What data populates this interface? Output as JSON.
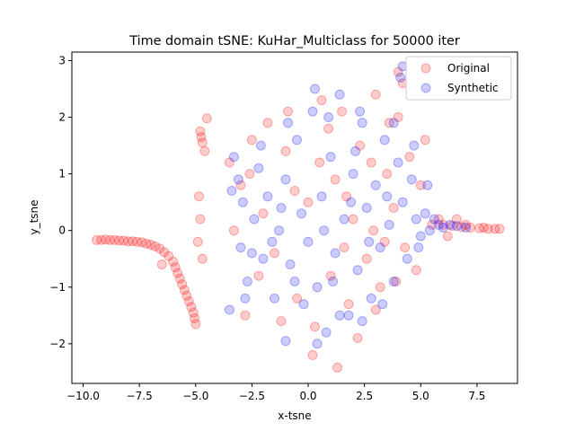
{
  "chart_data": {
    "type": "scatter",
    "title": "Time domain tSNE: KuHar_Multiclass for 50000 iter",
    "xlabel": "x-tsne",
    "ylabel": "y_tsne",
    "xlim": [
      -10.5,
      9.3
    ],
    "ylim": [
      -2.7,
      3.15
    ],
    "xticks": [
      -10.0,
      -7.5,
      -5.0,
      -2.5,
      0.0,
      2.5,
      5.0,
      7.5
    ],
    "xtick_labels": [
      "−10.0",
      "−7.5",
      "−5.0",
      "−2.5",
      "0.0",
      "2.5",
      "5.0",
      "7.5"
    ],
    "yticks": [
      -2,
      -1,
      0,
      1,
      2,
      3
    ],
    "ytick_labels": [
      "−2",
      "−1",
      "0",
      "1",
      "2",
      "3"
    ],
    "grid": false,
    "legend_position": "top-right",
    "series": [
      {
        "name": "Original",
        "color": "#ff0000",
        "alpha": 0.2,
        "points": [
          [
            -9.4,
            -0.17
          ],
          [
            -9.2,
            -0.17
          ],
          [
            -9.0,
            -0.16
          ],
          [
            -8.8,
            -0.17
          ],
          [
            -8.6,
            -0.17
          ],
          [
            -8.4,
            -0.18
          ],
          [
            -8.2,
            -0.18
          ],
          [
            -8.0,
            -0.19
          ],
          [
            -7.8,
            -0.19
          ],
          [
            -7.6,
            -0.2
          ],
          [
            -7.4,
            -0.21
          ],
          [
            -7.2,
            -0.23
          ],
          [
            -7.0,
            -0.25
          ],
          [
            -6.8,
            -0.28
          ],
          [
            -6.6,
            -0.32
          ],
          [
            -6.4,
            -0.38
          ],
          [
            -6.2,
            -0.45
          ],
          [
            -6.0,
            -0.55
          ],
          [
            -5.9,
            -0.65
          ],
          [
            -5.8,
            -0.75
          ],
          [
            -5.7,
            -0.85
          ],
          [
            -5.6,
            -0.95
          ],
          [
            -5.5,
            -1.05
          ],
          [
            -5.4,
            -1.15
          ],
          [
            -5.3,
            -1.25
          ],
          [
            -5.2,
            -1.35
          ],
          [
            -5.1,
            -1.45
          ],
          [
            -5.05,
            -1.55
          ],
          [
            -5.0,
            -1.65
          ],
          [
            -6.5,
            -0.6
          ],
          [
            -4.8,
            1.75
          ],
          [
            -4.75,
            1.65
          ],
          [
            -4.7,
            1.55
          ],
          [
            -4.6,
            1.4
          ],
          [
            -4.8,
            0.2
          ],
          [
            -4.9,
            -0.2
          ],
          [
            -4.7,
            -0.5
          ],
          [
            -4.85,
            0.6
          ],
          [
            -4.5,
            1.98
          ],
          [
            -3.5,
            1.2
          ],
          [
            -3.0,
            0.8
          ],
          [
            -2.5,
            1.6
          ],
          [
            -2.0,
            0.3
          ],
          [
            -1.5,
            -0.4
          ],
          [
            -1.0,
            1.4
          ],
          [
            -0.5,
            -1.2
          ],
          [
            0.0,
            0.5
          ],
          [
            0.3,
            -1.7
          ],
          [
            0.6,
            2.3
          ],
          [
            1.0,
            -0.8
          ],
          [
            1.2,
            0.9
          ],
          [
            1.5,
            2.1
          ],
          [
            1.8,
            -1.3
          ],
          [
            2.0,
            0.2
          ],
          [
            2.3,
            1.5
          ],
          [
            2.6,
            -0.5
          ],
          [
            3.0,
            2.4
          ],
          [
            3.2,
            -1.0
          ],
          [
            3.5,
            1.0
          ],
          [
            3.8,
            0.4
          ],
          [
            4.0,
            2.0
          ],
          [
            4.3,
            -0.3
          ],
          [
            4.5,
            1.3
          ],
          [
            4.8,
            -0.7
          ],
          [
            5.0,
            0.8
          ],
          [
            5.2,
            1.6
          ],
          [
            5.5,
            0.1
          ],
          [
            -2.8,
            -1.5
          ],
          [
            -1.2,
            -1.6
          ],
          [
            0.2,
            -2.2
          ],
          [
            1.3,
            -2.42
          ],
          [
            2.2,
            -1.9
          ],
          [
            3.0,
            -1.4
          ],
          [
            3.9,
            -0.9
          ],
          [
            4.2,
            2.6
          ],
          [
            4.0,
            2.8
          ],
          [
            3.6,
            1.9
          ],
          [
            2.8,
            1.2
          ],
          [
            -3.3,
            0.0
          ],
          [
            -2.2,
            -0.8
          ],
          [
            -0.6,
            0.7
          ],
          [
            0.9,
            1.8
          ],
          [
            1.7,
            0.6
          ],
          [
            2.9,
            0.0
          ],
          [
            3.4,
            -0.2
          ],
          [
            -0.9,
            2.1
          ],
          [
            -1.8,
            1.9
          ],
          [
            -2.6,
            1.0
          ],
          [
            0.5,
            1.2
          ],
          [
            1.6,
            -0.3
          ],
          [
            6.0,
            0.1
          ],
          [
            6.4,
            0.08
          ],
          [
            6.8,
            0.06
          ],
          [
            7.2,
            0.05
          ],
          [
            7.6,
            0.04
          ],
          [
            8.0,
            0.03
          ],
          [
            8.3,
            0.03
          ],
          [
            8.5,
            0.03
          ],
          [
            7.0,
            0.1
          ],
          [
            6.6,
            0.2
          ],
          [
            7.8,
            0.05
          ],
          [
            5.8,
            0.2
          ],
          [
            6.2,
            -0.1
          ]
        ]
      },
      {
        "name": "Synthetic",
        "color": "#0000ff",
        "alpha": 0.2,
        "points": [
          [
            -3.3,
            1.3
          ],
          [
            -3.1,
            0.9
          ],
          [
            -2.9,
            0.5
          ],
          [
            -3.0,
            -0.3
          ],
          [
            -2.7,
            -0.9
          ],
          [
            -2.4,
            0.2
          ],
          [
            -2.2,
            1.1
          ],
          [
            -2.0,
            -0.5
          ],
          [
            -1.8,
            0.6
          ],
          [
            -1.5,
            -1.2
          ],
          [
            -1.3,
            0.0
          ],
          [
            -1.0,
            0.9
          ],
          [
            -0.8,
            -0.6
          ],
          [
            -0.5,
            1.6
          ],
          [
            -0.3,
            0.3
          ],
          [
            0.0,
            -0.2
          ],
          [
            0.2,
            2.1
          ],
          [
            0.4,
            -1.0
          ],
          [
            0.6,
            0.6
          ],
          [
            0.8,
            -1.8
          ],
          [
            1.0,
            1.3
          ],
          [
            1.2,
            -0.4
          ],
          [
            1.4,
            2.4
          ],
          [
            1.6,
            0.2
          ],
          [
            1.8,
            -1.5
          ],
          [
            2.0,
            1.0
          ],
          [
            2.2,
            -0.7
          ],
          [
            2.4,
            1.9
          ],
          [
            2.6,
            0.4
          ],
          [
            2.8,
            -1.2
          ],
          [
            3.0,
            0.8
          ],
          [
            3.2,
            -0.3
          ],
          [
            3.4,
            1.6
          ],
          [
            3.6,
            0.1
          ],
          [
            3.8,
            -0.9
          ],
          [
            4.0,
            1.2
          ],
          [
            4.2,
            0.5
          ],
          [
            4.4,
            -0.5
          ],
          [
            4.6,
            0.9
          ],
          [
            4.8,
            0.2
          ],
          [
            5.0,
            -0.1
          ],
          [
            5.2,
            0.3
          ],
          [
            5.4,
            0.0
          ],
          [
            5.6,
            0.2
          ],
          [
            5.8,
            0.1
          ],
          [
            6.0,
            0.05
          ],
          [
            6.3,
            0.1
          ],
          [
            6.6,
            0.08
          ],
          [
            7.0,
            0.05
          ],
          [
            -3.5,
            -1.4
          ],
          [
            -2.8,
            -1.2
          ],
          [
            -1.0,
            -1.95
          ],
          [
            0.4,
            -2.0
          ],
          [
            1.4,
            -1.5
          ],
          [
            2.4,
            -1.6
          ],
          [
            3.3,
            -1.3
          ],
          [
            -3.4,
            0.7
          ],
          [
            -2.1,
            1.5
          ],
          [
            -0.9,
            1.9
          ],
          [
            0.9,
            2.0
          ],
          [
            2.3,
            2.1
          ],
          [
            3.8,
            1.9
          ],
          [
            4.2,
            2.9
          ],
          [
            4.1,
            2.7
          ],
          [
            0.3,
            2.5
          ],
          [
            4.7,
            1.5
          ],
          [
            5.3,
            0.8
          ],
          [
            -1.6,
            -0.2
          ],
          [
            -0.2,
            -1.3
          ],
          [
            1.1,
            -0.9
          ],
          [
            2.7,
            -0.2
          ],
          [
            3.5,
            0.6
          ],
          [
            -2.5,
            -0.4
          ],
          [
            0.7,
            0.0
          ],
          [
            1.9,
            0.5
          ],
          [
            -1.2,
            0.4
          ],
          [
            4.9,
            -0.3
          ],
          [
            -0.6,
            -0.9
          ],
          [
            2.1,
            1.4
          ]
        ]
      }
    ]
  }
}
